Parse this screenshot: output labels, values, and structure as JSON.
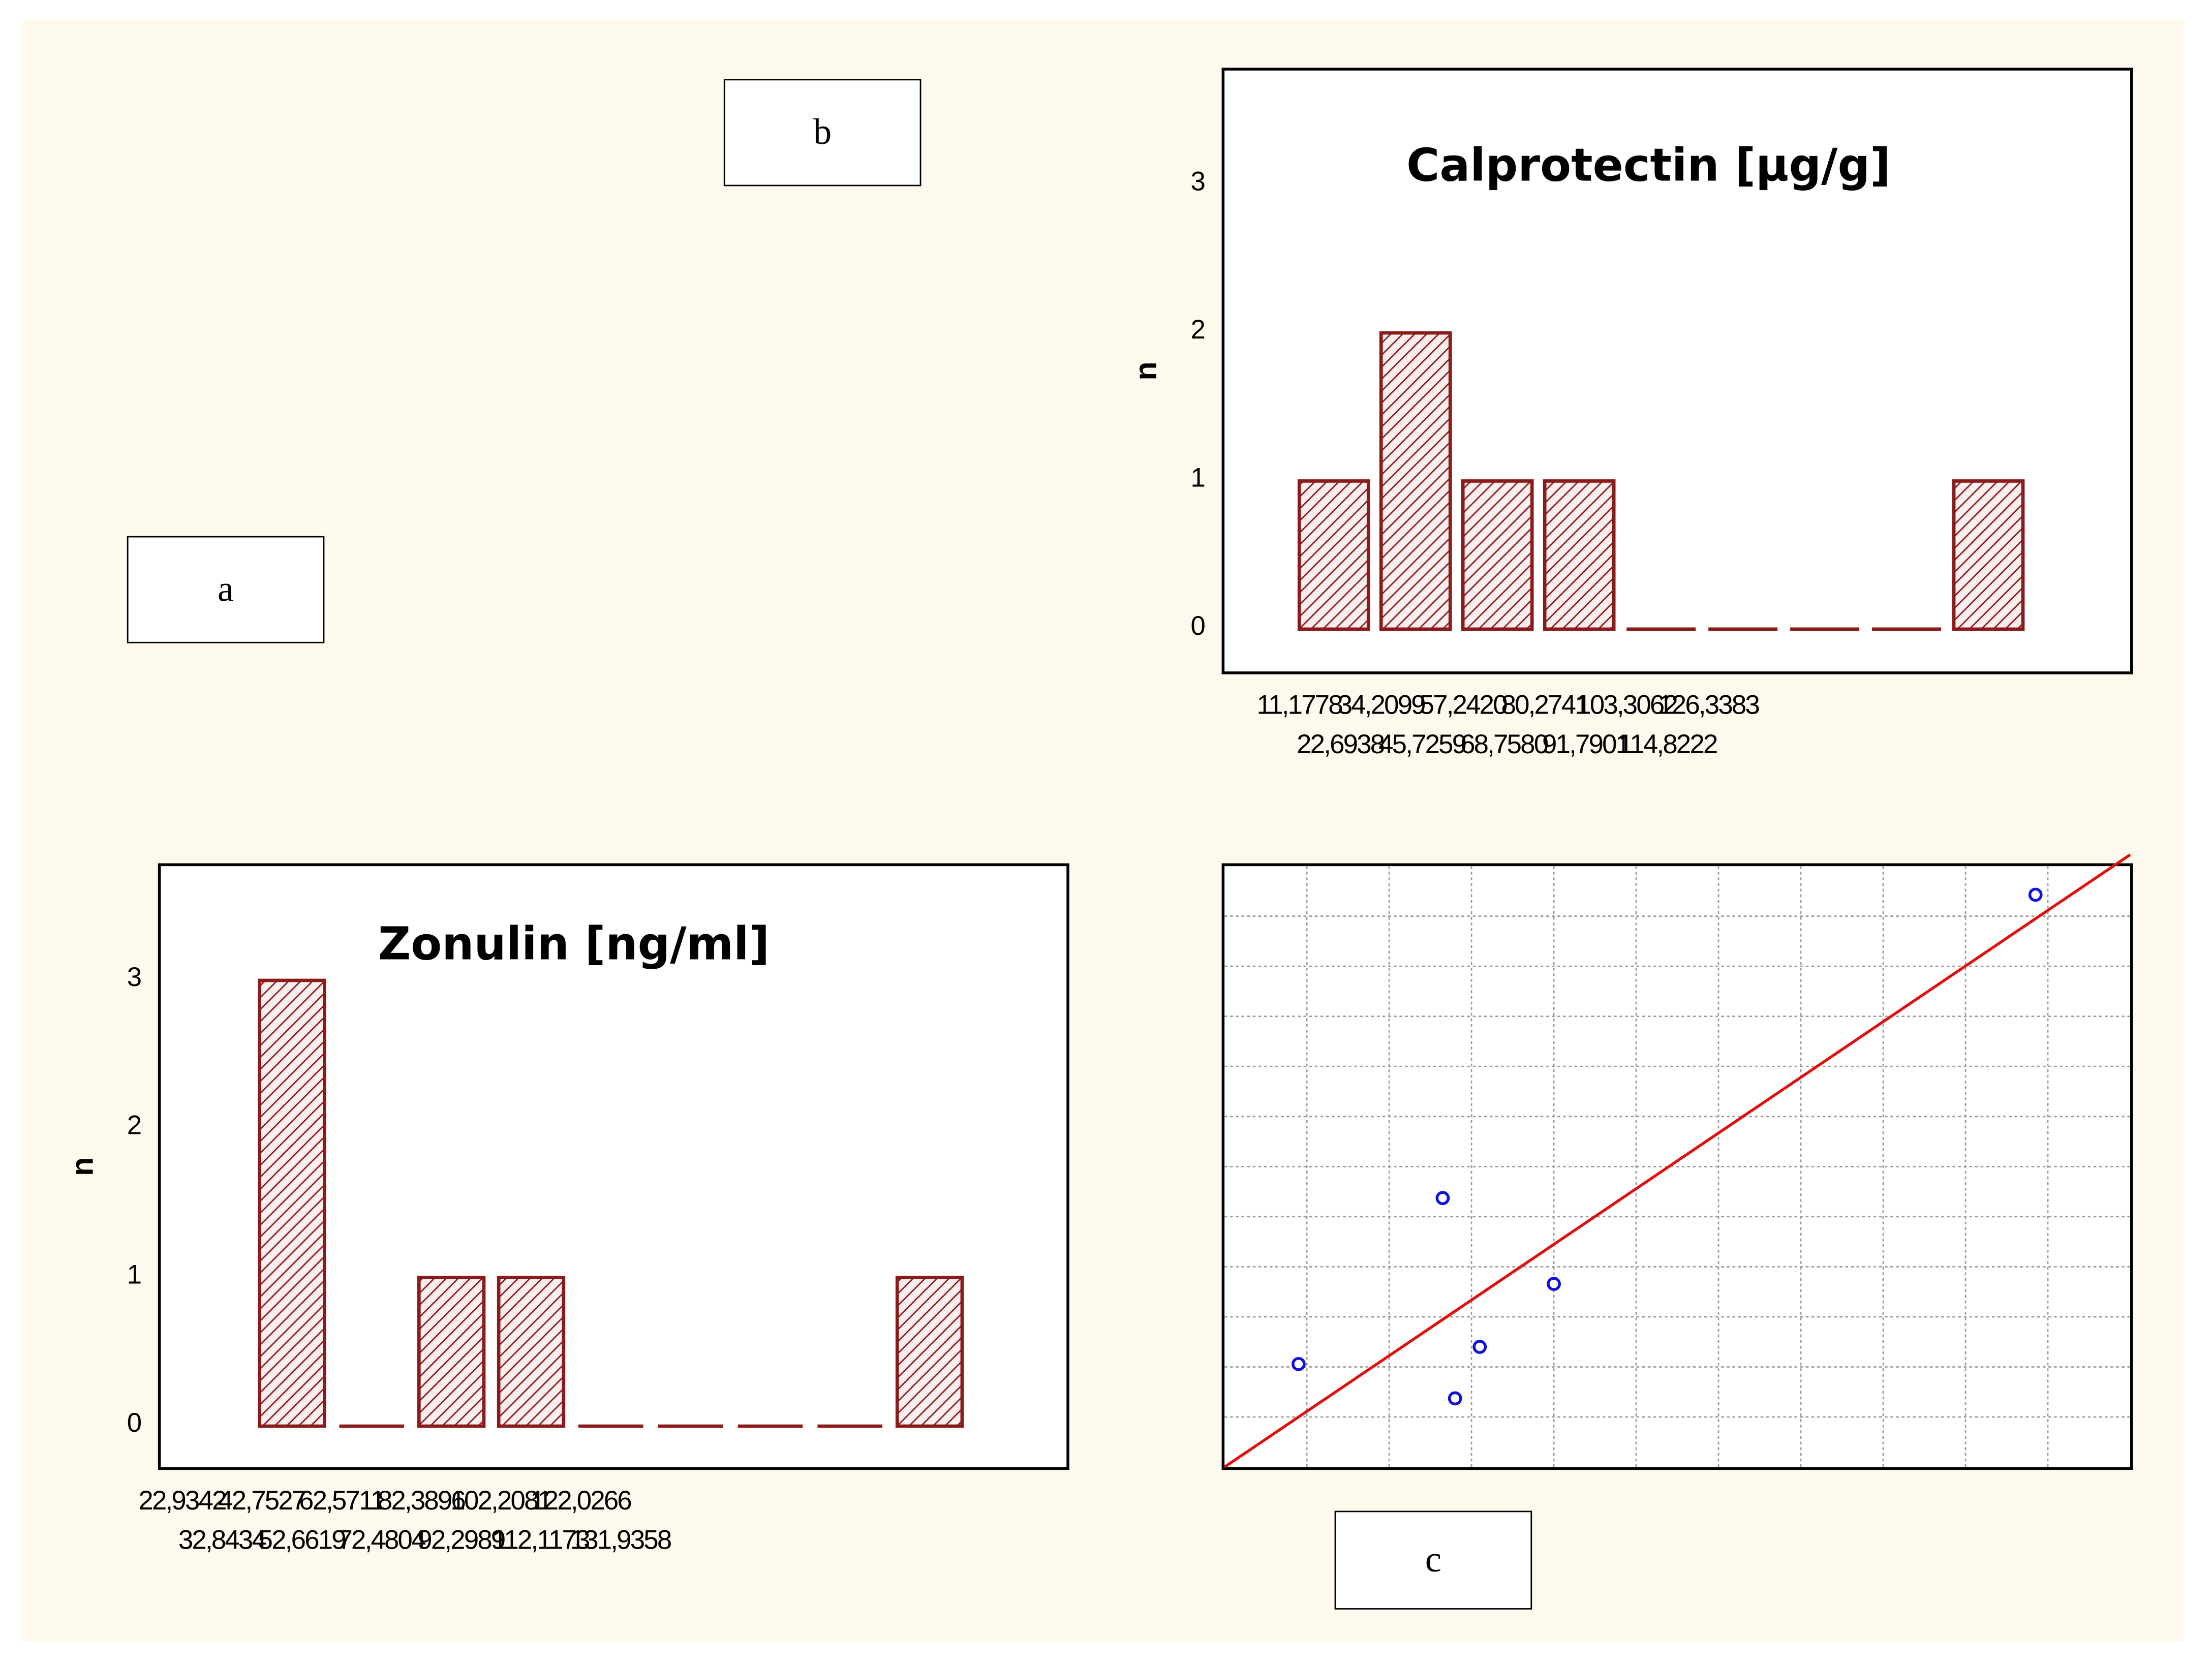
{
  "labels": {
    "a": "a",
    "b": "b",
    "c": "c"
  },
  "colors": {
    "bar_fill": "#fbeeee",
    "bar_stroke": "#8b1a1a",
    "hatch": "#8b1a1a",
    "scatter_point": "#1010e0",
    "fit_line": "#e01010",
    "grid": "#9a9a9a"
  },
  "chart_data": [
    {
      "id": "calprotectin",
      "type": "bar",
      "title": "Calprotectin [µg/g]",
      "ylabel": "n",
      "xlabel": "",
      "ylim": [
        0,
        3
      ],
      "yticks": [
        0,
        1,
        2,
        3
      ],
      "values": [
        1,
        2,
        1,
        1,
        0,
        0,
        0,
        0,
        1
      ],
      "xticks": [
        "11,1778",
        "22,6938",
        "34,2099",
        "45,7259",
        "57,2420",
        "68,7580",
        "80,2741",
        "91,7901",
        "103,3062",
        "114,8222",
        "126,3383"
      ],
      "grid": false
    },
    {
      "id": "zonulin",
      "type": "bar",
      "title": "Zonulin [ng/ml]",
      "ylabel": "n",
      "xlabel": "",
      "ylim": [
        0,
        3
      ],
      "yticks": [
        0,
        1,
        2,
        3
      ],
      "values": [
        3,
        0,
        1,
        1,
        0,
        0,
        0,
        0,
        1
      ],
      "xticks": [
        "22,9342",
        "32,8434",
        "42,7527",
        "52,6619",
        "62,5711",
        "72,4804",
        "82,3896",
        "92,2989",
        "102,2081",
        "112,1173",
        "122,0266",
        "131,9358"
      ],
      "grid": false
    },
    {
      "id": "scatter",
      "type": "scatter",
      "title": "",
      "xlabel": "",
      "ylabel": "",
      "xlim": [
        0,
        11
      ],
      "ylim": [
        0,
        10.5
      ],
      "points": [
        [
          0.9,
          1.8
        ],
        [
          2.65,
          4.7
        ],
        [
          2.8,
          1.2
        ],
        [
          3.1,
          2.1
        ],
        [
          4.0,
          3.2
        ],
        [
          9.85,
          10.0
        ]
      ],
      "fit_line": [
        [
          0,
          0
        ],
        [
          11,
          10.7
        ]
      ],
      "grid": true,
      "x_gridlines": 10,
      "y_gridlines": 11
    }
  ]
}
